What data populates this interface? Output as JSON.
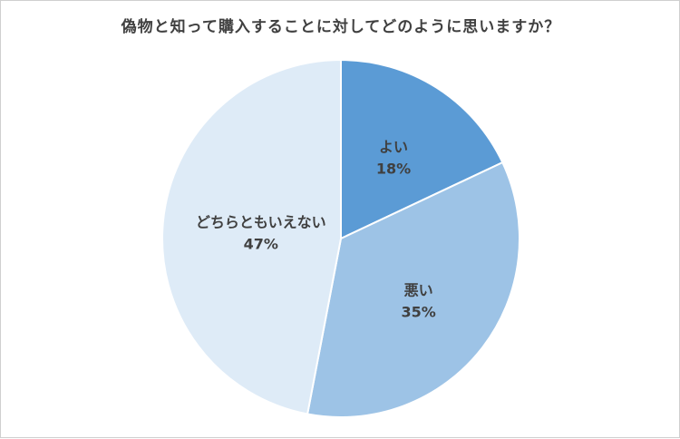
{
  "chart_data": {
    "type": "pie",
    "title": "偽物と知って購入することに対してどのように思いますか？",
    "slices": [
      {
        "label": "よい",
        "value": 18,
        "display": "18%",
        "color": "#5b9bd5"
      },
      {
        "label": "悪い",
        "value": 35,
        "display": "35%",
        "color": "#9dc3e6"
      },
      {
        "label": "どちらともいえない",
        "value": 47,
        "display": "47%",
        "color": "#deebf7"
      }
    ],
    "start": "12 o'clock",
    "direction": "clockwise",
    "slice_border_color": "#ffffff"
  }
}
